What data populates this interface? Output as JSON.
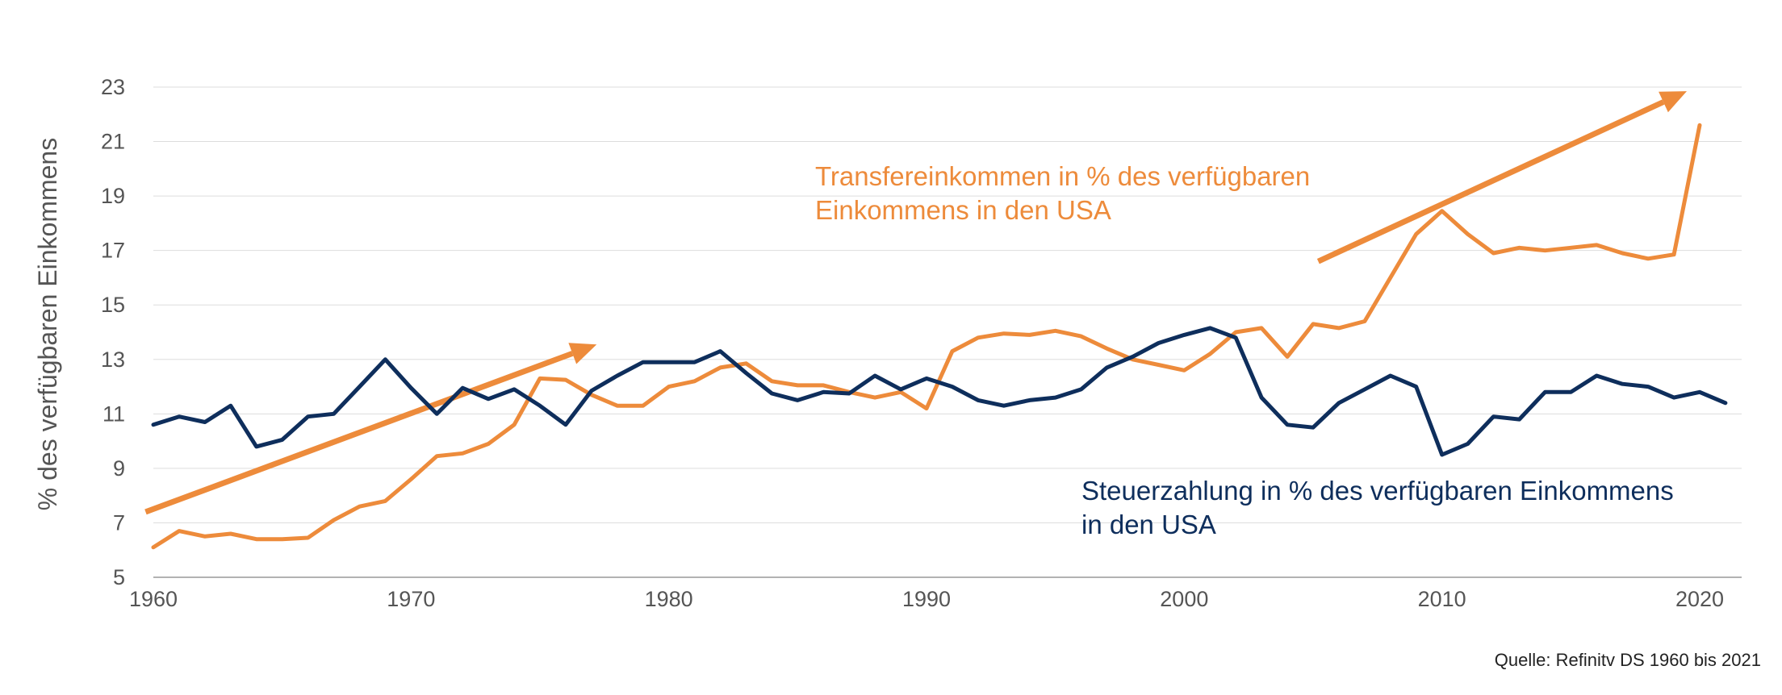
{
  "chart_data": {
    "type": "line",
    "ylabel": "% des verfügbaren Einkommens",
    "xlabel": "",
    "ylim": [
      5,
      23
    ],
    "xlim": [
      1960,
      2021
    ],
    "yticks": [
      5,
      7,
      9,
      11,
      13,
      15,
      17,
      19,
      21,
      23
    ],
    "xticks": [
      1960,
      1970,
      1980,
      1990,
      2000,
      2010,
      2020
    ],
    "grid": true,
    "x": [
      1960,
      1961,
      1962,
      1963,
      1964,
      1965,
      1966,
      1967,
      1968,
      1969,
      1970,
      1971,
      1972,
      1973,
      1974,
      1975,
      1976,
      1977,
      1978,
      1979,
      1980,
      1981,
      1982,
      1983,
      1984,
      1985,
      1986,
      1987,
      1988,
      1989,
      1990,
      1991,
      1992,
      1993,
      1994,
      1995,
      1996,
      1997,
      1998,
      1999,
      2000,
      2001,
      2002,
      2003,
      2004,
      2005,
      2006,
      2007,
      2008,
      2009,
      2010,
      2011,
      2012,
      2013,
      2014,
      2015,
      2016,
      2017,
      2018,
      2019,
      2020,
      2021
    ],
    "series": [
      {
        "name": "Transfereinkommen in % des verfügbaren Einkommens in den USA",
        "color": "#ED8B3B",
        "values": [
          6.1,
          6.7,
          6.5,
          6.6,
          6.4,
          6.4,
          6.45,
          7.1,
          7.6,
          7.8,
          8.6,
          9.45,
          9.55,
          9.9,
          10.6,
          12.3,
          12.25,
          11.7,
          11.3,
          11.3,
          12.0,
          12.2,
          12.7,
          12.85,
          12.2,
          12.05,
          12.05,
          11.8,
          11.6,
          11.8,
          11.2,
          13.3,
          13.8,
          13.95,
          13.9,
          14.05,
          13.85,
          13.4,
          13.0,
          12.8,
          12.6,
          13.2,
          14.0,
          14.15,
          13.1,
          14.3,
          14.15,
          14.4,
          16.0,
          17.6,
          18.45,
          17.6,
          16.9,
          17.1,
          17.0,
          17.1,
          17.2,
          16.9,
          16.7,
          16.85,
          21.6,
          null
        ]
      },
      {
        "name": "Steuerzahlung in % des verfügbaren Einkommens in den USA",
        "color": "#0E2E5C",
        "values": [
          10.6,
          10.9,
          10.7,
          11.3,
          9.8,
          10.05,
          10.9,
          11.0,
          12.0,
          13.0,
          11.95,
          11.0,
          11.95,
          11.55,
          11.9,
          11.3,
          10.6,
          11.85,
          12.4,
          12.9,
          12.9,
          12.9,
          13.3,
          12.5,
          11.75,
          11.5,
          11.8,
          11.75,
          12.4,
          11.9,
          12.3,
          12.0,
          11.5,
          11.3,
          11.5,
          11.6,
          11.9,
          12.7,
          13.1,
          13.6,
          13.9,
          14.15,
          13.8,
          11.6,
          10.6,
          10.5,
          11.4,
          11.9,
          12.4,
          12.0,
          9.5,
          9.9,
          10.9,
          10.8,
          11.8,
          11.8,
          12.4,
          12.1,
          12.0,
          11.6,
          11.8,
          11.4
        ]
      }
    ],
    "arrows": [
      {
        "color": "#ED8B3B",
        "from": [
          1959.7,
          7.4
        ],
        "to": [
          1977.2,
          13.55
        ]
      },
      {
        "color": "#ED8B3B",
        "from": [
          2005.2,
          16.6
        ],
        "to": [
          2019.5,
          22.85
        ]
      }
    ],
    "annotations": [
      {
        "lines": [
          "Transfereinkommen in % des verfügbaren",
          "Einkommens in den USA"
        ],
        "color": "#ED8B3B"
      },
      {
        "lines": [
          "Steuerzahlung in % des verfügbaren Einkommens",
          "in den USA"
        ],
        "color": "#0E2E5C"
      }
    ],
    "source": "Quelle: Refinitv DS 1960 bis 2021"
  }
}
